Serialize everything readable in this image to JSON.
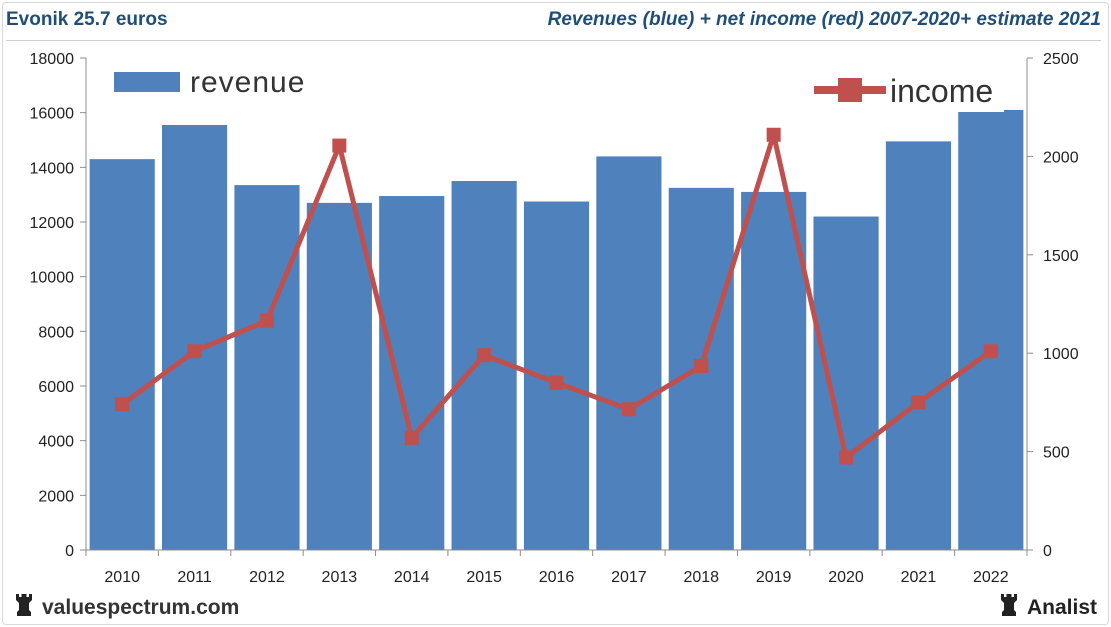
{
  "header": {
    "left_title": "Evonik 25.7 euros",
    "right_title": "Revenues (blue) + net income (red) 2007-2020+ estimate 2021"
  },
  "footer": {
    "site": "valuespectrum.com",
    "brand": "Analist"
  },
  "colors": {
    "revenue": "#4f81bd",
    "income": "#c0504d",
    "title": "#1f4e79"
  },
  "chart_data": {
    "type": "bar+line",
    "categories": [
      "2010",
      "2011",
      "2012",
      "2013",
      "2014",
      "2015",
      "2016",
      "2017",
      "2018",
      "2019",
      "2020",
      "2021",
      "2022"
    ],
    "series": [
      {
        "name": "revenue",
        "type": "bar",
        "axis": "left",
        "values": [
          14300,
          15550,
          13350,
          12700,
          12950,
          13500,
          12750,
          14400,
          13250,
          13100,
          12200,
          14950,
          16100
        ]
      },
      {
        "name": "income",
        "type": "line",
        "axis": "right",
        "values": [
          740,
          1010,
          1165,
          2055,
          570,
          990,
          850,
          715,
          935,
          2110,
          470,
          750,
          1010
        ]
      }
    ],
    "left_axis": {
      "ylim": [
        0,
        18000
      ],
      "ticks": [
        "0",
        "2000",
        "4000",
        "6000",
        "8000",
        "10000",
        "12000",
        "14000",
        "16000",
        "18000"
      ]
    },
    "right_axis": {
      "ylim": [
        0,
        2500
      ],
      "ticks": [
        "0",
        "500",
        "1000",
        "1500",
        "2000",
        "2500"
      ]
    },
    "legend": [
      {
        "label": "revenue",
        "placement": "top-left"
      },
      {
        "label": "income",
        "placement": "top-right"
      }
    ],
    "grid": false
  }
}
